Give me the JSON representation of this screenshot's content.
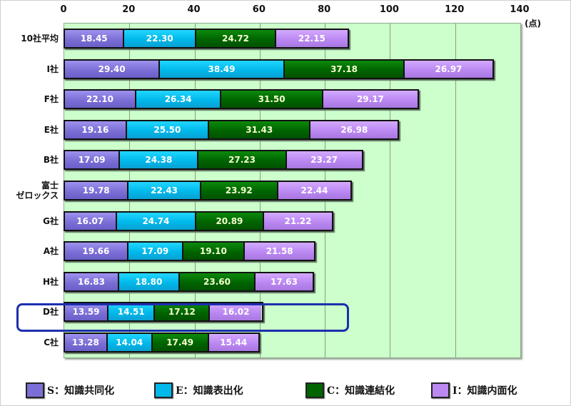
{
  "chart_data": {
    "type": "bar",
    "orientation": "horizontal",
    "stacked": true,
    "title": "",
    "xlabel": "",
    "ylabel": "",
    "unit_label": "(点)",
    "xlim": [
      0,
      140
    ],
    "xticks": [
      0,
      20,
      40,
      60,
      80,
      100,
      120,
      140
    ],
    "grid": true,
    "legend_position": "bottom",
    "categories": [
      "10社平均",
      "I社",
      "F社",
      "E社",
      "B社",
      "富士\nゼロックス",
      "G社",
      "A社",
      "H社",
      "D社",
      "C社"
    ],
    "series": [
      {
        "name": "S：知識共同化",
        "key": "s",
        "color": "#7b6fd6",
        "values": [
          18.45,
          29.4,
          22.1,
          19.16,
          17.09,
          19.78,
          16.07,
          19.66,
          16.83,
          13.59,
          13.28
        ]
      },
      {
        "name": "E：知識表出化",
        "key": "e",
        "color": "#00b8ea",
        "values": [
          22.3,
          38.49,
          26.34,
          25.5,
          24.38,
          22.43,
          24.74,
          17.09,
          18.8,
          14.51,
          14.04
        ]
      },
      {
        "name": "C：知識連結化",
        "key": "c",
        "color": "#006400",
        "values": [
          24.72,
          37.18,
          31.5,
          31.43,
          27.23,
          23.92,
          20.89,
          19.1,
          23.6,
          17.12,
          17.49
        ]
      },
      {
        "name": "I：知識内面化",
        "key": "i",
        "color": "#bb88f2",
        "values": [
          22.15,
          26.97,
          29.17,
          26.98,
          23.27,
          22.44,
          21.22,
          21.58,
          17.63,
          16.02,
          15.44
        ]
      }
    ],
    "annotations": [
      {
        "type": "highlight-box",
        "target": "D社",
        "color": "#1c2fae"
      }
    ]
  },
  "rows": [
    {
      "label": "10社平均",
      "values": [
        "18.45",
        "22.30",
        "24.72",
        "22.15"
      ]
    },
    {
      "label": "I社",
      "values": [
        "29.40",
        "38.49",
        "37.18",
        "26.97"
      ]
    },
    {
      "label": "F社",
      "values": [
        "22.10",
        "26.34",
        "31.50",
        "29.17"
      ]
    },
    {
      "label": "E社",
      "values": [
        "19.16",
        "25.50",
        "31.43",
        "26.98"
      ]
    },
    {
      "label": "B社",
      "values": [
        "17.09",
        "24.38",
        "27.23",
        "23.27"
      ]
    },
    {
      "label": "富士\nゼロックス",
      "values": [
        "19.78",
        "22.43",
        "23.92",
        "22.44"
      ]
    },
    {
      "label": "G社",
      "values": [
        "16.07",
        "24.74",
        "20.89",
        "21.22"
      ]
    },
    {
      "label": "A社",
      "values": [
        "19.66",
        "17.09",
        "19.10",
        "21.58"
      ]
    },
    {
      "label": "H社",
      "values": [
        "16.83",
        "18.80",
        "23.60",
        "17.63"
      ]
    },
    {
      "label": "D社",
      "values": [
        "13.59",
        "14.51",
        "17.12",
        "16.02"
      ]
    },
    {
      "label": "C社",
      "values": [
        "13.28",
        "14.04",
        "17.49",
        "15.44"
      ]
    }
  ],
  "legend": [
    {
      "label": "S：知識共同化",
      "key": "s"
    },
    {
      "label": "E：知識表出化",
      "key": "e"
    },
    {
      "label": "C：知識連結化",
      "key": "c"
    },
    {
      "label": "I：知識内面化",
      "key": "i"
    }
  ]
}
